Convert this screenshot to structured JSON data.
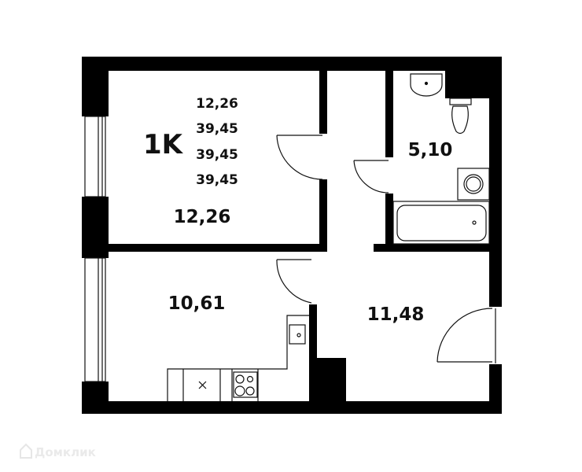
{
  "plan": {
    "type_label": "1K",
    "area_list": [
      "12,26",
      "39,45",
      "39,45",
      "39,45"
    ],
    "rooms": {
      "bedroom": "12,26",
      "bathroom": "5,10",
      "kitchen": "10,61",
      "hallway": "11,48"
    }
  },
  "watermark": "Домклик",
  "colors": {
    "wall": "#000000",
    "background": "#ffffff"
  }
}
